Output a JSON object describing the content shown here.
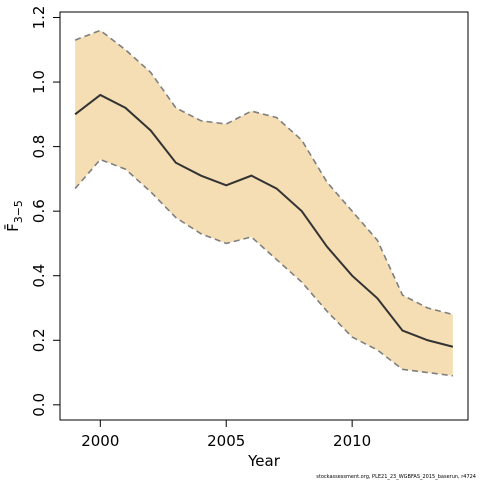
{
  "chart_data": {
    "type": "band-line",
    "xlabel": "Year",
    "ylabel": "F̄",
    "ylabel_sub": "3−5",
    "source": "stockassessment.org, PLE21_23_WGBFAS_2015_baserun, r4724",
    "x": [
      1999,
      2000,
      2001,
      2002,
      2003,
      2004,
      2005,
      2006,
      2007,
      2008,
      2009,
      2010,
      2011,
      2012,
      2013,
      2014
    ],
    "values": [
      0.9,
      0.96,
      0.92,
      0.85,
      0.75,
      0.71,
      0.68,
      0.71,
      0.67,
      0.6,
      0.49,
      0.4,
      0.33,
      0.23,
      0.2,
      0.18
    ],
    "upper": [
      1.13,
      1.16,
      1.1,
      1.03,
      0.92,
      0.88,
      0.87,
      0.91,
      0.89,
      0.82,
      0.69,
      0.6,
      0.51,
      0.34,
      0.3,
      0.28
    ],
    "lower": [
      0.67,
      0.76,
      0.73,
      0.66,
      0.58,
      0.53,
      0.5,
      0.52,
      0.45,
      0.38,
      0.29,
      0.21,
      0.17,
      0.11,
      0.1,
      0.09
    ],
    "color": "#333333",
    "band_color": "#f5deb3",
    "band_edge_color": "#7f7f7f",
    "xlim": [
      1998.4,
      2014.6
    ],
    "xticks": [
      2000,
      2005,
      2010
    ],
    "ylim": [
      -0.047,
      1.217
    ],
    "yticks": [
      {
        "value": 0,
        "label": "0.0"
      },
      0.2,
      0.4,
      0.6,
      0.8,
      {
        "value": 1,
        "label": "1.0"
      },
      1.2
    ]
  }
}
